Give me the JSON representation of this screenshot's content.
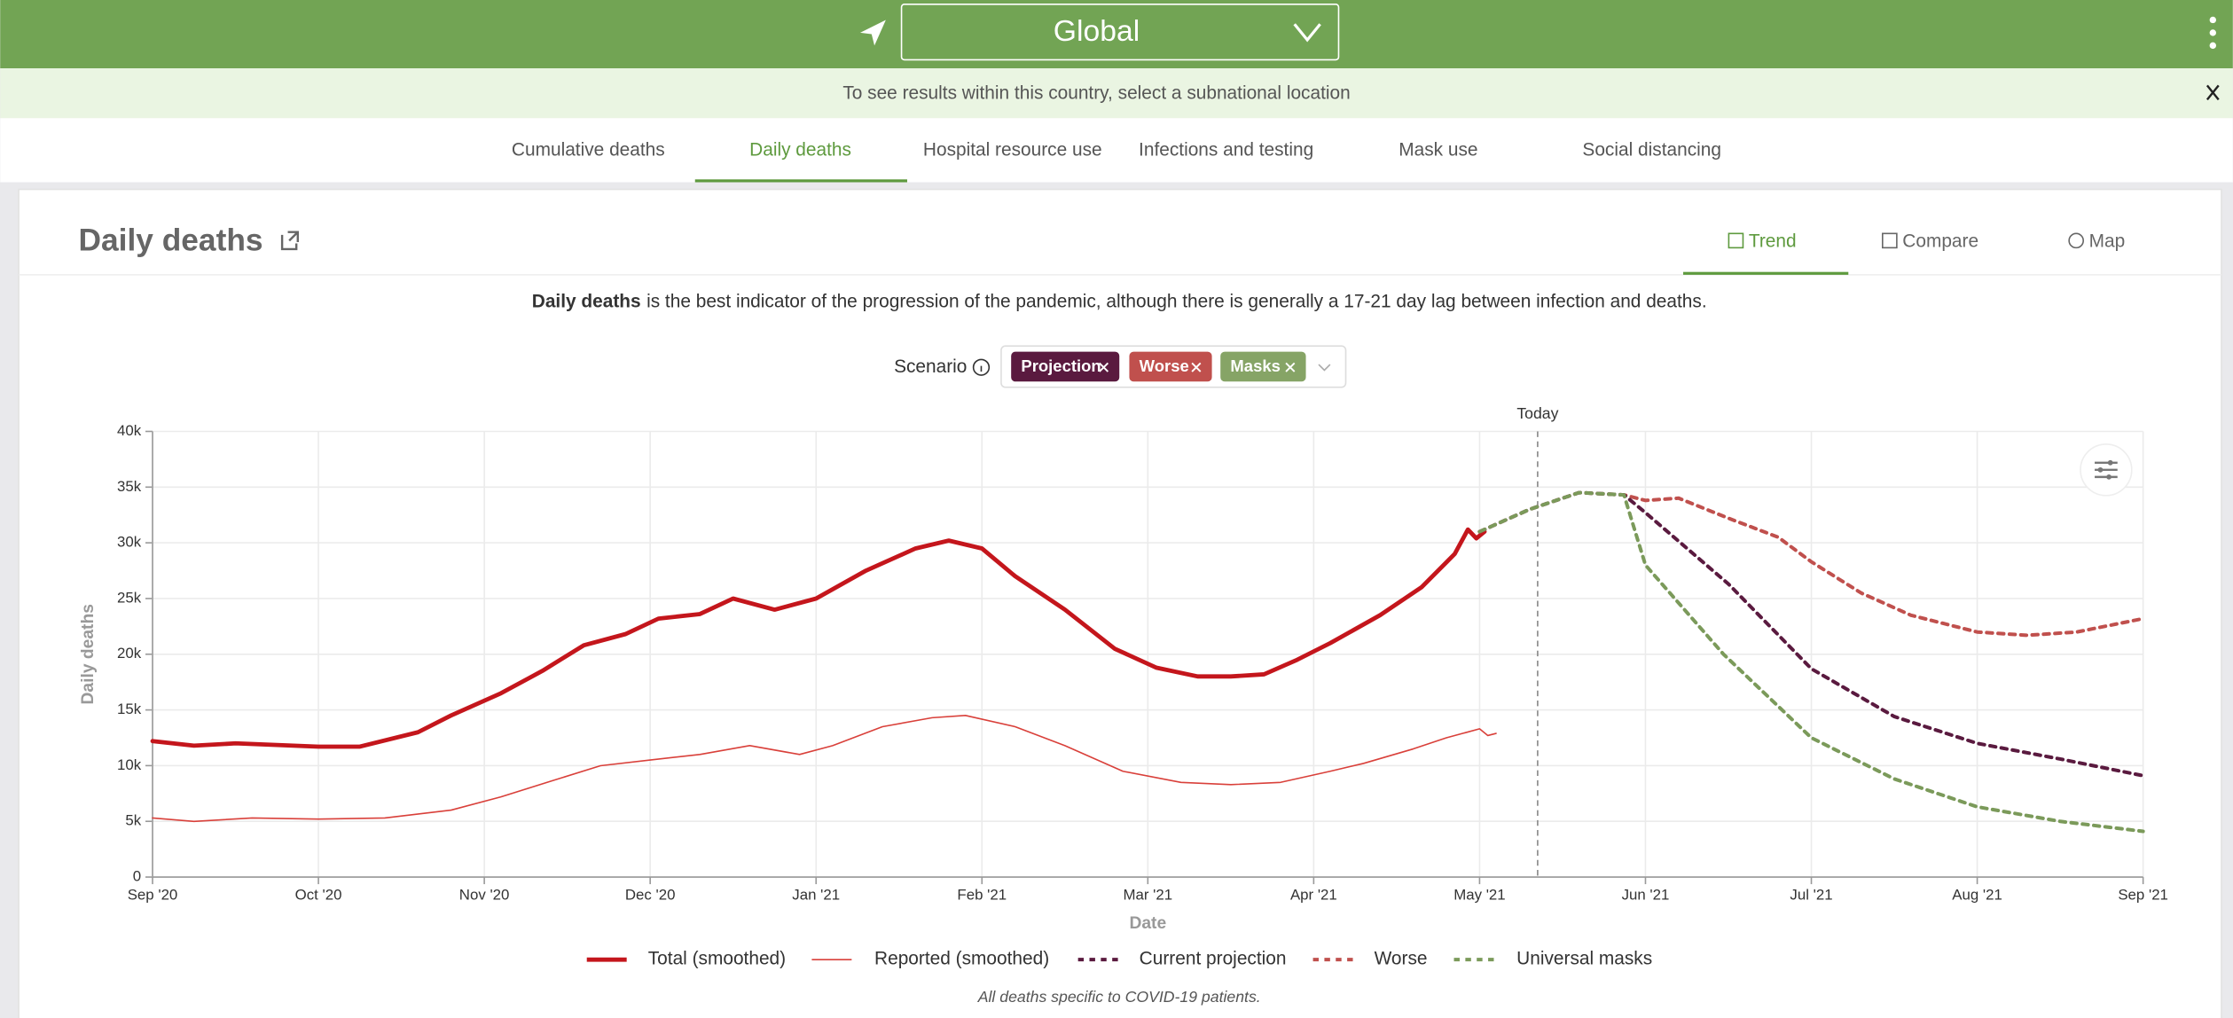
{
  "header": {
    "location": "Global"
  },
  "banner": {
    "text": "To see results within this country, select a subnational location"
  },
  "tabs": [
    "Cumulative deaths",
    "Daily deaths",
    "Hospital resource use",
    "Infections and testing",
    "Mask use",
    "Social distancing"
  ],
  "panel": {
    "title": "Daily deaths",
    "views": [
      "Trend",
      "Compare",
      "Map"
    ],
    "description_bold": "Daily deaths",
    "description": "is the best indicator of the progression of the pandemic, although there is generally a 17-21 day lag between infection and deaths.",
    "scenario_label": "Scenario",
    "scenarios": [
      "Projection",
      "Worse",
      "Masks"
    ],
    "footnote": "All deaths specific to COVID-19 patients."
  },
  "chart_data": {
    "type": "line",
    "xlabel": "Date",
    "ylabel": "Daily deaths",
    "xlim": [
      0,
      12
    ],
    "ylim": [
      0,
      40000
    ],
    "grid": true,
    "xticks": [
      {
        "value": 0,
        "label": "Sep '20"
      },
      {
        "value": 1,
        "label": "Oct '20"
      },
      {
        "value": 2,
        "label": "Nov '20"
      },
      {
        "value": 3,
        "label": "Dec '20"
      },
      {
        "value": 4,
        "label": "Jan '21"
      },
      {
        "value": 5,
        "label": "Feb '21"
      },
      {
        "value": 6,
        "label": "Mar '21"
      },
      {
        "value": 7,
        "label": "Apr '21"
      },
      {
        "value": 8,
        "label": "May '21"
      },
      {
        "value": 9,
        "label": "Jun '21"
      },
      {
        "value": 10,
        "label": "Jul '21"
      },
      {
        "value": 11,
        "label": "Aug '21"
      },
      {
        "value": 12,
        "label": "Sep '21"
      }
    ],
    "yticks": [
      0,
      {
        "value": 5000,
        "label": "5k"
      },
      {
        "value": 10000,
        "label": "10k"
      },
      {
        "value": 15000,
        "label": "15k"
      },
      {
        "value": 20000,
        "label": "20k"
      },
      {
        "value": 25000,
        "label": "25k"
      },
      {
        "value": 30000,
        "label": "30k"
      },
      {
        "value": 35000,
        "label": "35k"
      },
      {
        "value": 40000,
        "label": "40k"
      }
    ],
    "annotation": {
      "x": 8.35,
      "text": "Today"
    },
    "series": [
      {
        "name": "Total (smoothed)",
        "color": "#c4161c",
        "line_width": 3,
        "dashed": false,
        "x": [
          0,
          0.25,
          0.5,
          1,
          1.25,
          1.6,
          1.8,
          2.1,
          2.35,
          2.6,
          2.85,
          3.05,
          3.3,
          3.5,
          3.75,
          4,
          4.3,
          4.6,
          4.8,
          5,
          5.2,
          5.5,
          5.8,
          6.05,
          6.3,
          6.5,
          6.7,
          6.9,
          7.1,
          7.4,
          7.65,
          7.85,
          7.93,
          7.98,
          8.03
        ],
        "values": [
          12200,
          11800,
          12000,
          11700,
          11700,
          13000,
          14500,
          16500,
          18500,
          20800,
          21800,
          23200,
          23600,
          25000,
          24000,
          25000,
          27500,
          29500,
          30200,
          29500,
          27000,
          24000,
          20500,
          18800,
          18000,
          18000,
          18200,
          19500,
          21000,
          23500,
          26000,
          29000,
          31200,
          30400,
          31000
        ]
      },
      {
        "name": "Reported (smoothed)",
        "color": "#d9403a",
        "line_width": 1,
        "dashed": false,
        "x": [
          0,
          0.25,
          0.6,
          1,
          1.4,
          1.8,
          2.1,
          2.4,
          2.7,
          3,
          3.3,
          3.6,
          3.9,
          4.1,
          4.4,
          4.7,
          4.9,
          5.2,
          5.5,
          5.85,
          6.2,
          6.5,
          6.8,
          7.1,
          7.3,
          7.6,
          7.8,
          8,
          8.05,
          8.1
        ],
        "values": [
          5300,
          5000,
          5300,
          5200,
          5300,
          6000,
          7200,
          8600,
          10000,
          10500,
          11000,
          11800,
          11000,
          11800,
          13500,
          14300,
          14500,
          13500,
          11800,
          9500,
          8500,
          8300,
          8500,
          9500,
          10200,
          11500,
          12500,
          13300,
          12700,
          12900
        ]
      },
      {
        "name": "Current projection",
        "color": "#5a1a3f",
        "line_width": 2.5,
        "dashed": true,
        "x": [
          8,
          8.3,
          8.6,
          8.87,
          9,
          9.5,
          10,
          10.5,
          11,
          11.5,
          12
        ],
        "values": [
          31000,
          33000,
          34500,
          34300,
          32700,
          26300,
          18700,
          14400,
          12000,
          10600,
          9100
        ]
      },
      {
        "name": "Worse",
        "color": "#c0504d",
        "line_width": 2.5,
        "dashed": true,
        "x": [
          8,
          8.3,
          8.6,
          8.87,
          9,
          9.2,
          9.5,
          9.8,
          10,
          10.3,
          10.6,
          11,
          11.3,
          11.6,
          12
        ],
        "values": [
          31000,
          33000,
          34500,
          34300,
          33800,
          34000,
          32200,
          30500,
          28300,
          25500,
          23500,
          22000,
          21700,
          22000,
          23200
        ]
      },
      {
        "name": "Universal masks",
        "color": "#7b9a5a",
        "line_width": 2.5,
        "dashed": true,
        "x": [
          8,
          8.3,
          8.6,
          8.87,
          9,
          9.47,
          10,
          10.5,
          11,
          11.5,
          12
        ],
        "values": [
          31000,
          33000,
          34500,
          34300,
          28000,
          20000,
          12500,
          8800,
          6300,
          5000,
          4100
        ]
      }
    ]
  }
}
